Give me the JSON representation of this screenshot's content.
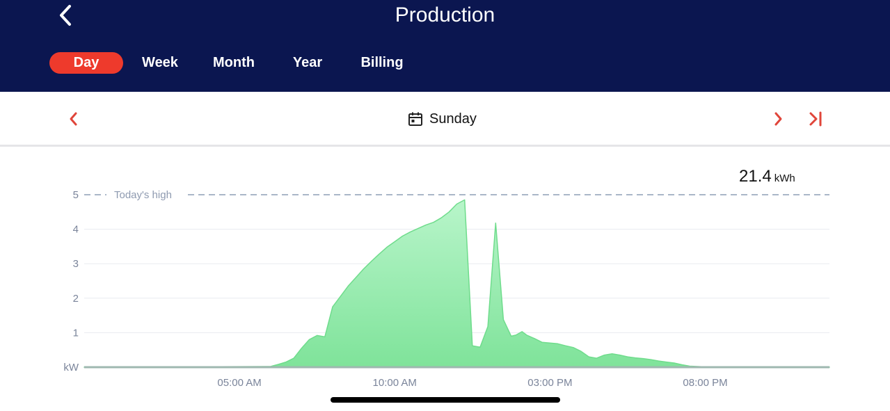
{
  "header": {
    "title": "Production",
    "tabs": [
      {
        "label": "Day",
        "active": true
      },
      {
        "label": "Week",
        "active": false
      },
      {
        "label": "Month",
        "active": false
      },
      {
        "label": "Year",
        "active": false
      },
      {
        "label": "Billing",
        "active": false
      }
    ]
  },
  "date_nav": {
    "label": "Sunday"
  },
  "summary": {
    "value": "21.4",
    "unit": "kWh"
  },
  "colors": {
    "header_bg": "#0b1650",
    "active_tab": "#ee3a2c",
    "nav_arrow": "#e0453a",
    "area_fill_top": "#b8f5ca",
    "area_fill_bottom": "#7fe39a",
    "area_stroke": "#6fdc8c",
    "high_line": "#a9b6c8"
  },
  "icons": {
    "back": "chevron-left-icon",
    "prev": "chevron-left-icon",
    "next": "chevron-right-icon",
    "last": "skip-to-end-icon",
    "calendar": "calendar-icon"
  },
  "chart_data": {
    "type": "area",
    "ylabel": "kW",
    "ylim": [
      0,
      5
    ],
    "xlim": [
      0,
      24
    ],
    "yticks": [
      "kW",
      "1",
      "2",
      "3",
      "4",
      "5"
    ],
    "xticks": [
      {
        "value": 5,
        "label": "05:00 AM"
      },
      {
        "value": 10,
        "label": "10:00 AM"
      },
      {
        "value": 15,
        "label": "03:00 PM"
      },
      {
        "value": 20,
        "label": "08:00 PM"
      }
    ],
    "high_line": {
      "value": 5,
      "label": "Today's high"
    },
    "grid": true,
    "series": [
      {
        "x": [
          0,
          6.0,
          6.25,
          6.5,
          6.75,
          7.0,
          7.25,
          7.5,
          7.75,
          8.0,
          8.25,
          8.5,
          8.75,
          9.0,
          9.25,
          9.5,
          9.75,
          10.0,
          10.25,
          10.5,
          10.75,
          11.0,
          11.25,
          11.5,
          11.75,
          12.0,
          12.25,
          12.5,
          12.75,
          13.0,
          13.25,
          13.5,
          13.75,
          13.9,
          14.1,
          14.25,
          14.5,
          14.75,
          15.0,
          15.25,
          15.5,
          15.75,
          16.0,
          16.25,
          16.5,
          16.75,
          17.0,
          17.25,
          17.5,
          17.75,
          18.0,
          18.25,
          18.5,
          18.75,
          19.0,
          19.25,
          19.5,
          20.0,
          24.0
        ],
        "y": [
          0,
          0.02,
          0.08,
          0.15,
          0.26,
          0.55,
          0.8,
          0.92,
          0.88,
          1.75,
          2.05,
          2.35,
          2.6,
          2.85,
          3.07,
          3.28,
          3.48,
          3.64,
          3.8,
          3.92,
          4.02,
          4.12,
          4.2,
          4.33,
          4.5,
          4.73,
          4.85,
          0.62,
          0.58,
          1.18,
          4.18,
          1.38,
          0.9,
          0.93,
          1.03,
          0.93,
          0.83,
          0.72,
          0.7,
          0.68,
          0.62,
          0.57,
          0.46,
          0.3,
          0.26,
          0.35,
          0.39,
          0.35,
          0.3,
          0.27,
          0.25,
          0.22,
          0.18,
          0.15,
          0.12,
          0.07,
          0.03,
          0.01,
          0
        ]
      }
    ]
  }
}
